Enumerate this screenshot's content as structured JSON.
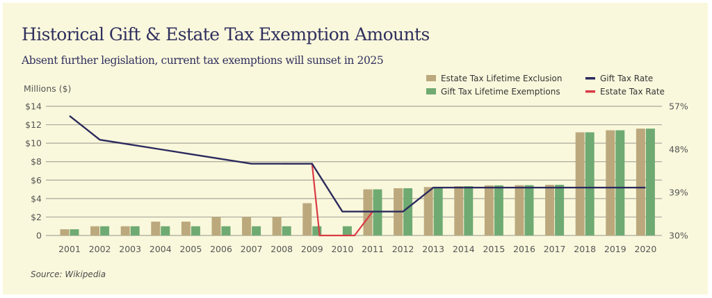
{
  "header": {
    "title": "Historical Gift & Estate Tax Exemption Amounts",
    "subtitle": "Absent further legislation, current tax exemptions will sunset in 2025"
  },
  "footer": {
    "source": "Source: Wikipedia"
  },
  "colors": {
    "background": "#faf8dc",
    "estate_exclusion": "#bba97d",
    "gift_exemption": "#6faa72",
    "gift_rate": "#2b2a5e",
    "estate_rate": "#d93a45",
    "grid": "#a9a79a"
  },
  "chart_data": {
    "type": "bar",
    "title": "Historical Gift & Estate Tax Exemption Amounts",
    "subtitle": "Absent further legislation, current tax exemptions will sunset in 2025",
    "ylabel": "Millions ($)",
    "y2label": "",
    "categories": [
      "2001",
      "2002",
      "2003",
      "2004",
      "2005",
      "2006",
      "2007",
      "2008",
      "2009",
      "2010",
      "2011",
      "2012",
      "2013",
      "2014",
      "2015",
      "2016",
      "2017",
      "2018",
      "2019",
      "2020"
    ],
    "ylim": [
      0,
      14
    ],
    "yticks": [
      0,
      2,
      4,
      6,
      8,
      10,
      12,
      14
    ],
    "ytick_labels": [
      "0",
      "$2",
      "$4",
      "$6",
      "$8",
      "$10",
      "$12",
      "$14"
    ],
    "y2lim": [
      30,
      57
    ],
    "y2ticks": [
      30,
      39,
      48,
      57
    ],
    "y2tick_labels": [
      "30%",
      "39%",
      "48%",
      "57%"
    ],
    "grid": true,
    "legend_position": "top-right",
    "series": [
      {
        "name": "Estate Tax Lifetime Exclusion",
        "kind": "bar",
        "axis": "left",
        "values": [
          0.675,
          1,
          1,
          1.5,
          1.5,
          2,
          2,
          2,
          3.5,
          0,
          5,
          5.12,
          5.25,
          5.34,
          5.43,
          5.45,
          5.49,
          11.18,
          11.4,
          11.58
        ]
      },
      {
        "name": "Gift Tax Lifetime Exemptions",
        "kind": "bar",
        "axis": "left",
        "values": [
          0.675,
          1,
          1,
          1,
          1,
          1,
          1,
          1,
          1,
          1,
          5,
          5.12,
          5.25,
          5.34,
          5.43,
          5.45,
          5.49,
          11.18,
          11.4,
          11.58
        ]
      },
      {
        "name": "Gift Tax Rate",
        "kind": "line",
        "axis": "right",
        "values": [
          55,
          50,
          49,
          48,
          47,
          46,
          45,
          45,
          45,
          35,
          35,
          35,
          40,
          40,
          40,
          40,
          40,
          40,
          40,
          40
        ]
      },
      {
        "name": "Estate Tax Rate",
        "kind": "line",
        "axis": "right",
        "values": [
          55,
          50,
          49,
          48,
          47,
          46,
          45,
          45,
          45,
          0,
          35,
          35,
          40,
          40,
          40,
          40,
          40,
          40,
          40,
          40
        ]
      }
    ]
  }
}
